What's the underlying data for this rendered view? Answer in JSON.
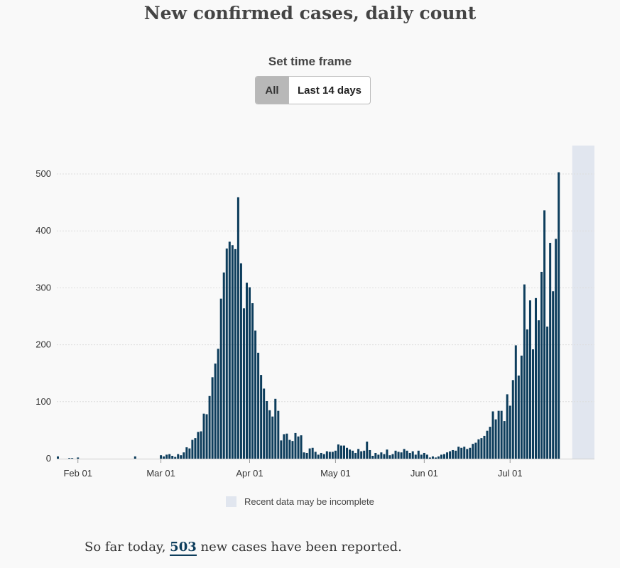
{
  "title": "New confirmed cases, daily count",
  "time_frame": {
    "label": "Set time frame",
    "options": [
      "All",
      "Last 14 days"
    ],
    "selected": "All"
  },
  "legend": {
    "incomplete_label": "Recent data may be incomplete"
  },
  "summary": {
    "prefix": "So far today,",
    "value": "503",
    "suffix": "new cases have been reported."
  },
  "colors": {
    "bar": "#0d3d5c",
    "incomplete": "#e1e6ef",
    "grid": "#dddddd"
  },
  "chart_data": {
    "type": "bar",
    "title": "New confirmed cases, daily count",
    "start_date": "2020-01-25",
    "ylim": [
      0,
      550
    ],
    "yticks": [
      0,
      100,
      200,
      300,
      400,
      500
    ],
    "xticks": [
      {
        "label": "Feb 01",
        "day_index": 7
      },
      {
        "label": "Mar 01",
        "day_index": 36
      },
      {
        "label": "Apr 01",
        "day_index": 67
      },
      {
        "label": "May 01",
        "day_index": 97
      },
      {
        "label": "Jun 01",
        "day_index": 128
      },
      {
        "label": "Jul 01",
        "day_index": 158
      }
    ],
    "incomplete_from_index": 180,
    "values": [
      4,
      0,
      0,
      0,
      1,
      1,
      0,
      2,
      0,
      0,
      0,
      0,
      0,
      0,
      0,
      0,
      0,
      0,
      0,
      0,
      0,
      0,
      0,
      0,
      0,
      0,
      0,
      4,
      0,
      0,
      0,
      0,
      0,
      0,
      0,
      0,
      6,
      4,
      7,
      8,
      5,
      3,
      8,
      6,
      11,
      20,
      18,
      33,
      36,
      47,
      48,
      79,
      78,
      110,
      143,
      167,
      193,
      281,
      327,
      369,
      381,
      375,
      368,
      459,
      343,
      264,
      309,
      301,
      273,
      225,
      186,
      147,
      123,
      101,
      85,
      74,
      105,
      84,
      32,
      43,
      44,
      33,
      31,
      45,
      39,
      41,
      11,
      10,
      18,
      19,
      12,
      7,
      10,
      8,
      13,
      12,
      12,
      14,
      25,
      23,
      23,
      19,
      16,
      14,
      10,
      17,
      13,
      14,
      30,
      15,
      5,
      10,
      7,
      11,
      8,
      16,
      6,
      8,
      14,
      12,
      11,
      17,
      14,
      10,
      13,
      7,
      14,
      7,
      10,
      7,
      2,
      4,
      2,
      4,
      7,
      8,
      11,
      13,
      15,
      14,
      21,
      19,
      21,
      17,
      19,
      26,
      28,
      34,
      36,
      40,
      49,
      56,
      83,
      69,
      84,
      84,
      66,
      113,
      93,
      138,
      199,
      146,
      181,
      306,
      227,
      278,
      192,
      282,
      243,
      328,
      436,
      232,
      379,
      294,
      386,
      503
    ]
  }
}
